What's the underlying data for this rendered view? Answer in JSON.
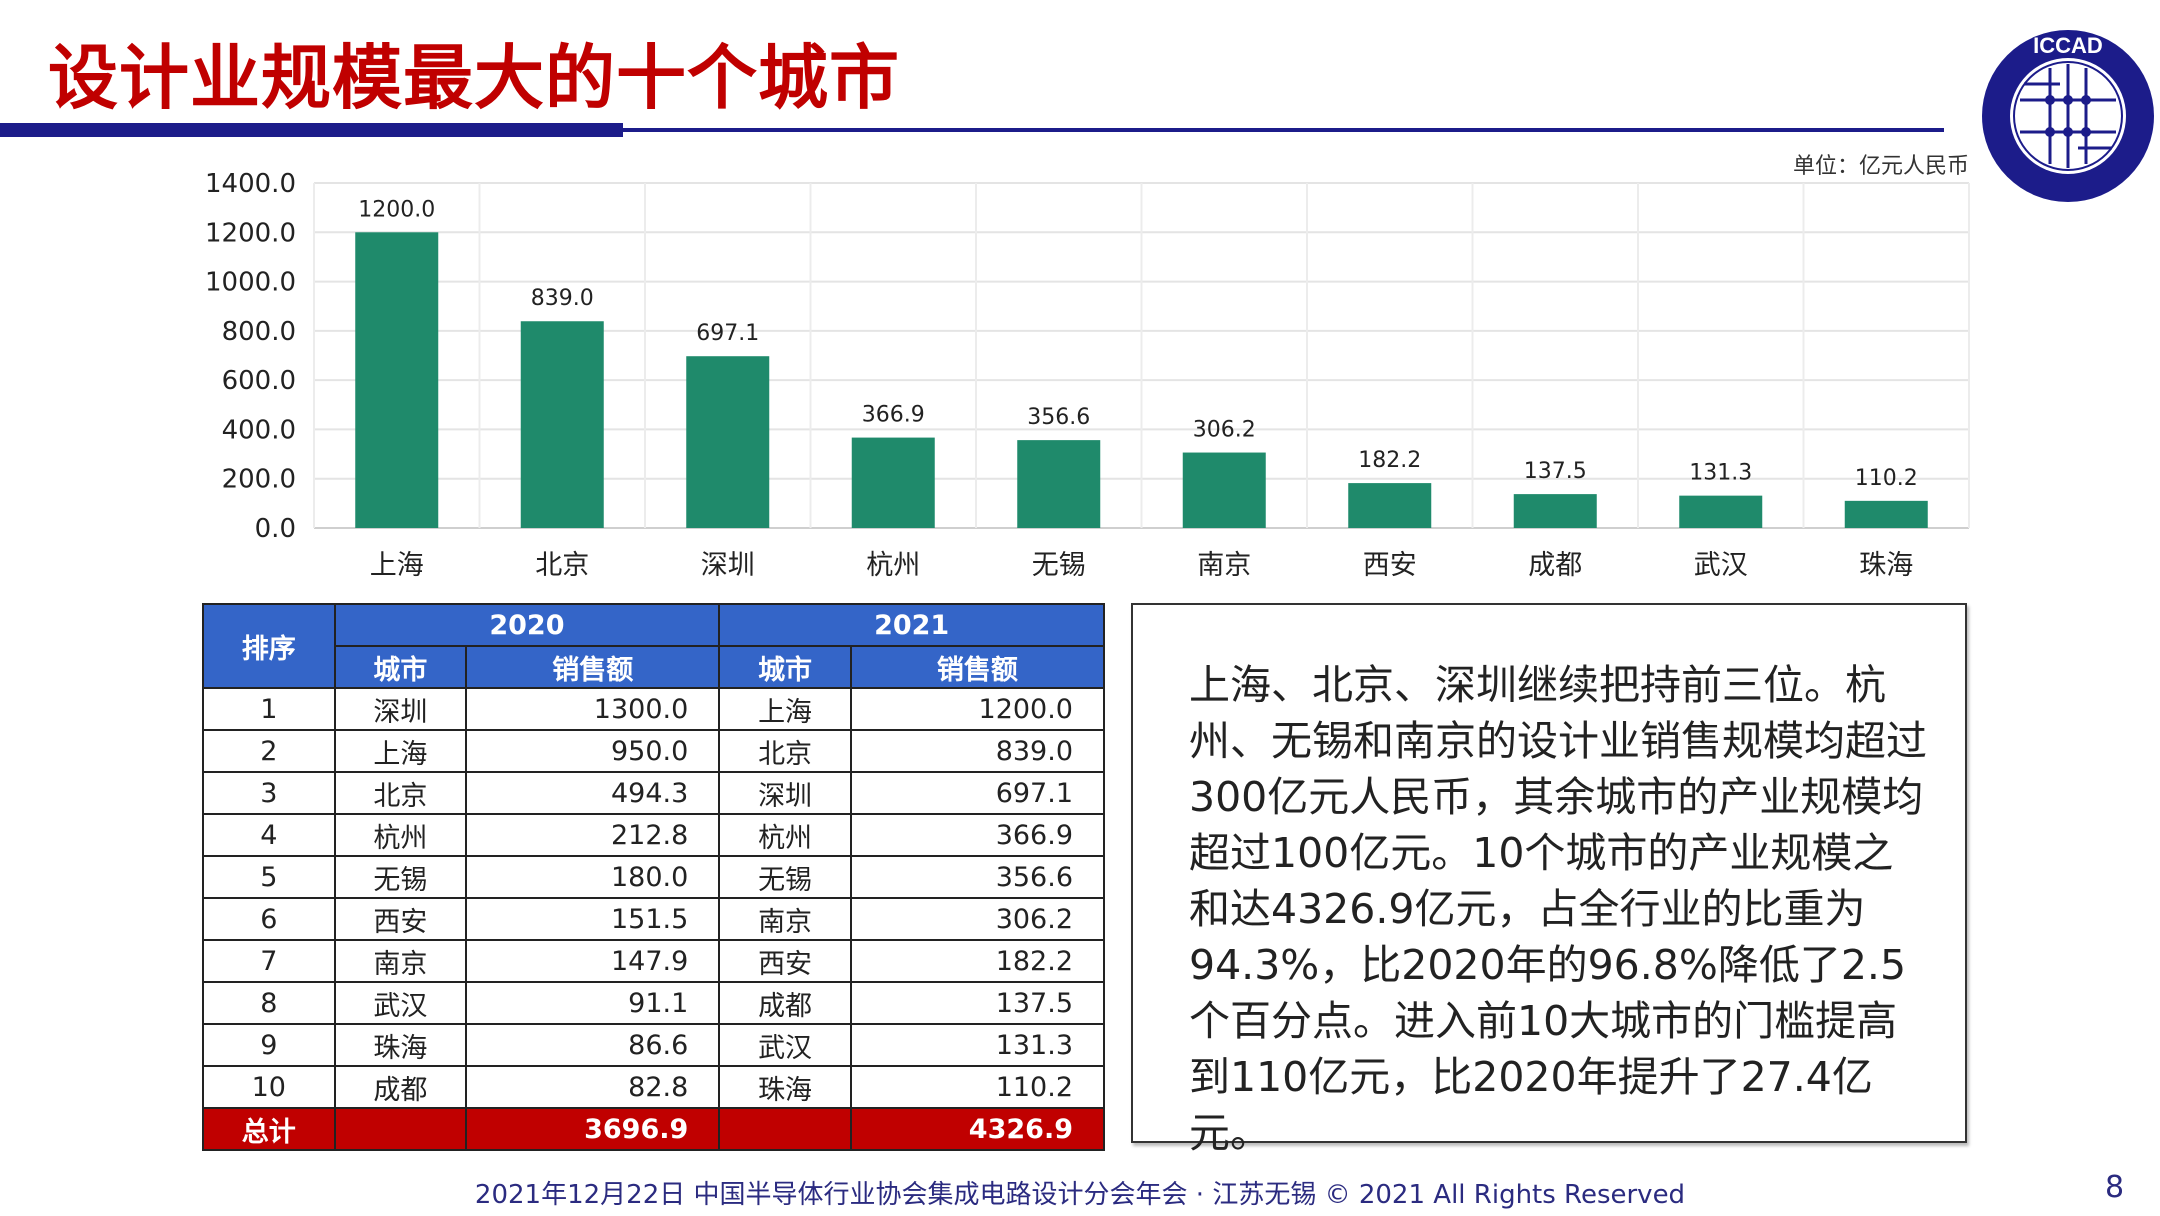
{
  "header": {
    "title": "设计业规模最大的十个城市",
    "logo_text": "ICCAD",
    "logo_subtext": "中国半导体行业协会集成电路设计分会"
  },
  "colors": {
    "title": "#c00000",
    "accent_navy": "#1c1c8a",
    "bar": "#1f8a6b",
    "table_header": "#3465c8",
    "total_row": "#c00000"
  },
  "chart_data": {
    "type": "bar",
    "unit_label": "单位：亿元人民币",
    "categories": [
      "上海",
      "北京",
      "深圳",
      "杭州",
      "无锡",
      "南京",
      "西安",
      "成都",
      "武汉",
      "珠海"
    ],
    "values": [
      1200.0,
      839.0,
      697.1,
      366.9,
      356.6,
      306.2,
      182.2,
      137.5,
      131.3,
      110.2
    ],
    "value_labels": [
      "1200.0",
      "839.0",
      "697.1",
      "366.9",
      "356.6",
      "306.2",
      "182.2",
      "137.5",
      "131.3",
      "110.2"
    ],
    "ylim": [
      0,
      1400
    ],
    "yticks": [
      "0.0",
      "200.0",
      "400.0",
      "600.0",
      "800.0",
      "1000.0",
      "1200.0",
      "1400.0"
    ],
    "grid": true
  },
  "table": {
    "rank_header": "排序",
    "year1": "2020",
    "year2": "2021",
    "city_header": "城市",
    "sales_header": "销售额",
    "rows": [
      {
        "rank": "1",
        "c1": "深圳",
        "v1": "1300.0",
        "c2": "上海",
        "v2": "1200.0"
      },
      {
        "rank": "2",
        "c1": "上海",
        "v1": "950.0",
        "c2": "北京",
        "v2": "839.0"
      },
      {
        "rank": "3",
        "c1": "北京",
        "v1": "494.3",
        "c2": "深圳",
        "v2": "697.1"
      },
      {
        "rank": "4",
        "c1": "杭州",
        "v1": "212.8",
        "c2": "杭州",
        "v2": "366.9"
      },
      {
        "rank": "5",
        "c1": "无锡",
        "v1": "180.0",
        "c2": "无锡",
        "v2": "356.6"
      },
      {
        "rank": "6",
        "c1": "西安",
        "v1": "151.5",
        "c2": "南京",
        "v2": "306.2"
      },
      {
        "rank": "7",
        "c1": "南京",
        "v1": "147.9",
        "c2": "西安",
        "v2": "182.2"
      },
      {
        "rank": "8",
        "c1": "武汉",
        "v1": "91.1",
        "c2": "成都",
        "v2": "137.5"
      },
      {
        "rank": "9",
        "c1": "珠海",
        "v1": "86.6",
        "c2": "武汉",
        "v2": "131.3"
      },
      {
        "rank": "10",
        "c1": "成都",
        "v1": "82.8",
        "c2": "珠海",
        "v2": "110.2"
      }
    ],
    "total_label": "总计",
    "total1": "3696.9",
    "total2": "4326.9"
  },
  "note": "上海、北京、深圳继续把持前三位。杭州、无锡和南京的设计业销售规模均超过300亿元人民币，其余城市的产业规模均超过100亿元。10个城市的产业规模之和达4326.9亿元，占全行业的比重为94.3%，比2020年的96.8%降低了2.5个百分点。进入前10大城市的门槛提高到110亿元，比2020年提升了27.4亿元。",
  "footer": {
    "text": "2021年12月22日 中国半导体行业协会集成电路设计分会年会 · 江苏无锡 © 2021 All Rights Reserved",
    "page": "8"
  }
}
